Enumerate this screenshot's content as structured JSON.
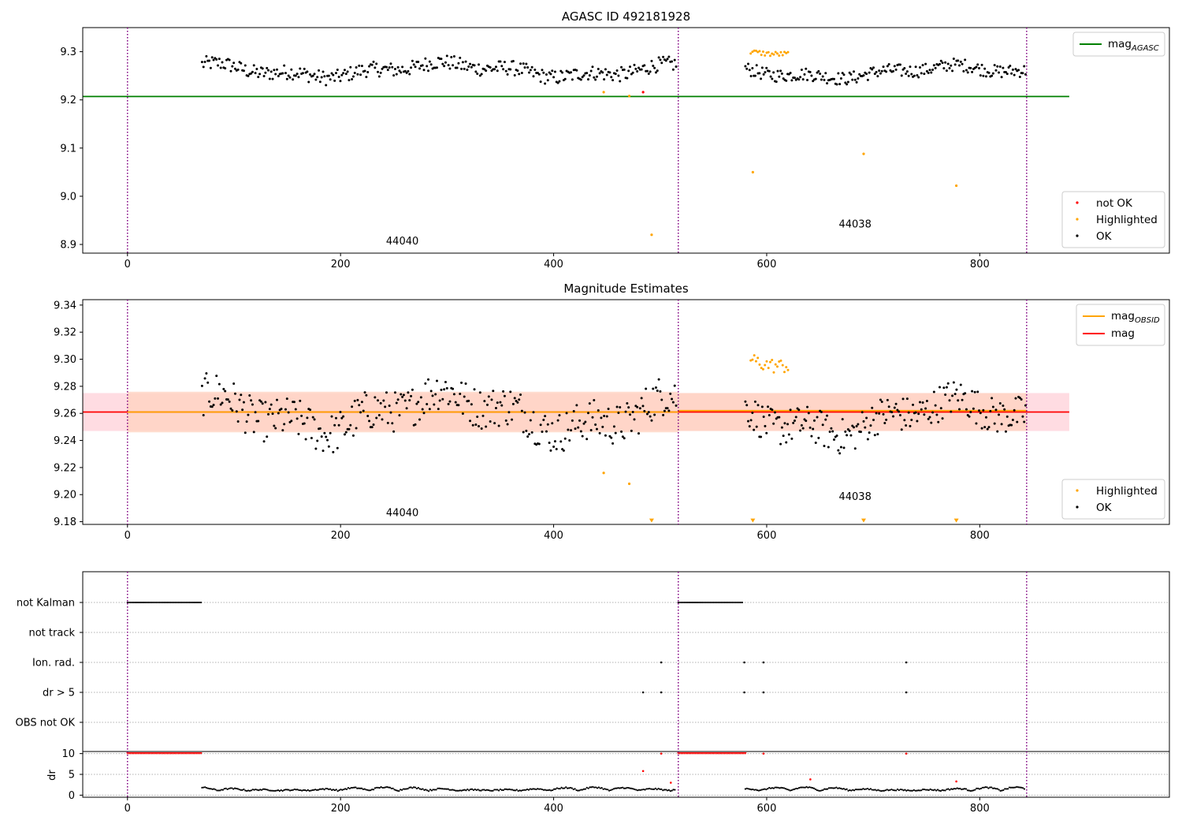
{
  "chart_data": [
    {
      "type": "scatter",
      "title": "AGASC ID 492181928",
      "xlim": [
        -42,
        978
      ],
      "ylim": [
        8.882,
        9.35
      ],
      "xticks": [
        0,
        200,
        400,
        600,
        800
      ],
      "yticks": [
        8.9,
        9.0,
        9.1,
        9.2,
        9.3
      ],
      "ytick_labels": [
        "8.9",
        "9.0",
        "9.1",
        "9.2",
        "9.3"
      ],
      "obs_boundaries": [
        0,
        517,
        844
      ],
      "obsid_labels": [
        {
          "text": "44040",
          "x": 258,
          "y": 8.9
        },
        {
          "text": "44038",
          "x": 683,
          "y": 8.935
        }
      ],
      "hline": {
        "name": "mag",
        "subscript": "AGASC",
        "y": 9.207,
        "x": [
          -42,
          884
        ],
        "color": "#008000"
      },
      "legend_lines": [
        {
          "label": "mag",
          "sub": "AGASC",
          "color": "#008000"
        }
      ],
      "legend_points": [
        {
          "label": "not OK",
          "color": "#ff0000"
        },
        {
          "label": "Highlighted",
          "color": "#ffa500"
        },
        {
          "label": "OK",
          "color": "#000000"
        }
      ],
      "series": [
        {
          "name": "OK",
          "color": "#000000",
          "x_range": [
            70,
            515
          ],
          "count": 330,
          "y_center": 9.262,
          "y_spread": 0.034
        },
        {
          "name": "OK",
          "color": "#000000",
          "x_range": [
            580,
            843
          ],
          "count": 200,
          "y_center": 9.258,
          "y_spread": 0.03
        },
        {
          "name": "Highlighted",
          "color": "#ffa500",
          "x_range": [
            585,
            620
          ],
          "count": 22,
          "y_center": 9.298,
          "y_spread": 0.012
        },
        {
          "name": "Highlighted",
          "color": "#ffa500",
          "points": [
            [
              447,
              9.216
            ],
            [
              471,
              9.208
            ],
            [
              492,
              8.92
            ],
            [
              587,
              9.05
            ],
            [
              691,
              9.088
            ],
            [
              778,
              9.022
            ]
          ]
        },
        {
          "name": "not OK",
          "color": "#ff0000",
          "points": [
            [
              484,
              9.216
            ]
          ]
        }
      ]
    },
    {
      "type": "scatter",
      "title": "Magnitude Estimates",
      "xlim": [
        -42,
        978
      ],
      "ylim": [
        9.178,
        9.344
      ],
      "xticks": [
        0,
        200,
        400,
        600,
        800
      ],
      "yticks": [
        9.18,
        9.2,
        9.22,
        9.24,
        9.26,
        9.28,
        9.3,
        9.32,
        9.34
      ],
      "ytick_labels": [
        "9.18",
        "9.20",
        "9.22",
        "9.24",
        "9.26",
        "9.28",
        "9.30",
        "9.32",
        "9.34"
      ],
      "obs_boundaries": [
        0,
        517,
        844
      ],
      "obsid_labels": [
        {
          "text": "44040",
          "x": 258,
          "y": 9.184
        },
        {
          "text": "44038",
          "x": 683,
          "y": 9.196
        }
      ],
      "bands": [
        {
          "x": [
            -42,
            884
          ],
          "y": [
            9.247,
            9.275
          ],
          "color": "#ffd0d8"
        },
        {
          "x": [
            0,
            517
          ],
          "y": [
            9.246,
            9.276
          ],
          "color": "#ffd3bf"
        },
        {
          "x": [
            517,
            844
          ],
          "y": [
            9.247,
            9.275
          ],
          "color": "#ffd3bf"
        }
      ],
      "hlines": [
        {
          "name": "mag",
          "y": 9.261,
          "x": [
            -42,
            884
          ],
          "color": "#ff0000"
        },
        {
          "name": "mag_OBSID",
          "y": 9.261,
          "x": [
            0,
            517
          ],
          "color": "#ffa500"
        },
        {
          "name": "mag_OBSID",
          "y": 9.262,
          "x": [
            517,
            844
          ],
          "color": "#ffa500"
        }
      ],
      "legend_lines": [
        {
          "label": "mag",
          "sub": "OBSID",
          "color": "#ffa500"
        },
        {
          "label": "mag",
          "sub": "",
          "color": "#ff0000"
        }
      ],
      "legend_points": [
        {
          "label": "Highlighted",
          "color": "#ffa500"
        },
        {
          "label": "OK",
          "color": "#000000"
        }
      ],
      "series": [
        {
          "name": "OK",
          "color": "#000000",
          "x_range": [
            70,
            515
          ],
          "count": 330,
          "y_center": 9.261,
          "y_spread": 0.034
        },
        {
          "name": "OK",
          "color": "#000000",
          "x_range": [
            580,
            843
          ],
          "count": 200,
          "y_center": 9.257,
          "y_spread": 0.03
        },
        {
          "name": "Highlighted",
          "color": "#ffa500",
          "x_range": [
            585,
            620
          ],
          "count": 22,
          "y_center": 9.298,
          "y_spread": 0.012
        },
        {
          "name": "Highlighted",
          "color": "#ffa500",
          "points": [
            [
              447,
              9.216
            ],
            [
              471,
              9.208
            ]
          ]
        },
        {
          "name": "Highlighted (below range)",
          "color": "#ffa500",
          "marker": "triangle-down",
          "points": [
            [
              492,
              9.18
            ],
            [
              587,
              9.18
            ],
            [
              691,
              9.18
            ],
            [
              778,
              9.18
            ]
          ]
        }
      ]
    },
    {
      "type": "scatter",
      "title": "",
      "xlim": [
        -42,
        978
      ],
      "xticks": [
        0,
        200,
        400,
        600,
        800
      ],
      "obs_boundaries": [
        0,
        517,
        844
      ],
      "flag_rows": [
        "not Kalman",
        "not track",
        "Ion. rad.",
        "dr > 5",
        "OBS not OK"
      ],
      "flags": {
        "not Kalman": [
          [
            0,
            70
          ],
          [
            517,
            577
          ]
        ],
        "not track": [],
        "Ion. rad.": [
          501,
          579,
          597,
          731
        ],
        "dr > 5": [
          484,
          501,
          579,
          597,
          731
        ],
        "OBS not OK": []
      },
      "dr": {
        "ylabel": "dr",
        "ylim": [
          -0.5,
          10.5
        ],
        "yticks": [
          0,
          5,
          10
        ],
        "clip_value": 10,
        "clipped_ranges": [
          [
            0,
            70
          ],
          [
            517,
            580
          ]
        ],
        "red_points": [
          [
            501,
            10
          ],
          [
            597,
            10
          ],
          [
            731,
            10
          ],
          [
            484,
            5.8
          ],
          [
            510,
            3
          ],
          [
            641,
            3.8
          ],
          [
            778,
            3.3
          ]
        ],
        "ok_ranges": [
          [
            70,
            515
          ],
          [
            580,
            843
          ]
        ]
      }
    }
  ]
}
